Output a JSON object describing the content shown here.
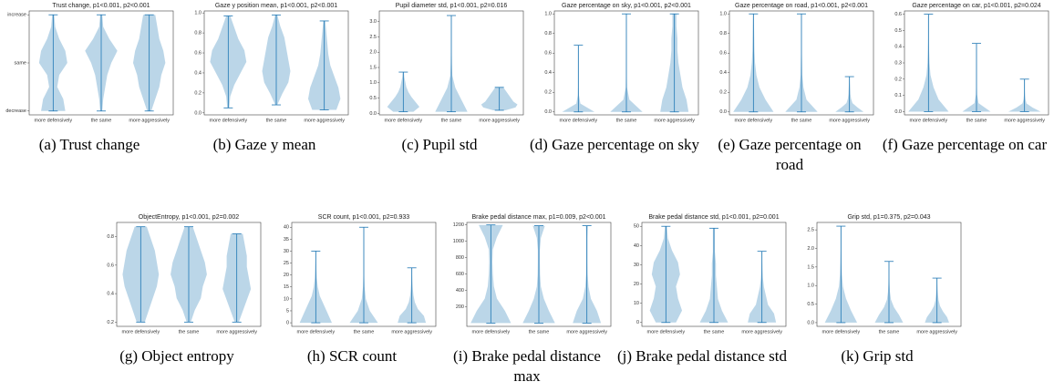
{
  "chart_data": [
    {
      "type": "violin",
      "title": "Trust change, p1<0.001, p2<0.001",
      "caption": "(a) Trust change",
      "color": "#1f77b4",
      "categories": [
        "more defensively",
        "the same",
        "more aggressively"
      ],
      "ylim": [
        -1.08,
        1.08
      ],
      "yticks": [
        {
          "value": -1,
          "label": "decrease"
        },
        {
          "value": 0,
          "label": "same"
        },
        {
          "value": 1,
          "label": "increase"
        }
      ],
      "violins": [
        {
          "min": -1,
          "max": 1,
          "density": [
            0.6,
            0.5,
            0.2,
            0.3,
            0.7,
            0.6,
            0.3,
            0.1,
            0.05
          ]
        },
        {
          "min": -1,
          "max": 1,
          "density": [
            0.05,
            0.1,
            0.2,
            0.3,
            0.5,
            0.8,
            0.4,
            0.1,
            0.05
          ]
        },
        {
          "min": -1,
          "max": 1,
          "density": [
            0.1,
            0.3,
            0.5,
            0.6,
            0.8,
            0.7,
            0.5,
            0.4,
            0.3
          ]
        }
      ]
    },
    {
      "type": "violin",
      "title": "Gaze y position mean, p1<0.001, p2<0.001",
      "caption": "(b) Gaze y mean",
      "color": "#1f77b4",
      "categories": [
        "more defensively",
        "the same",
        "more aggressively"
      ],
      "ylim": [
        -0.02,
        1.02
      ],
      "yticks": [
        {
          "value": 0,
          "label": "0.0"
        },
        0.2,
        0.4,
        0.6,
        0.8,
        {
          "value": 1,
          "label": "1.0"
        }
      ],
      "violins": [
        {
          "min": 0.05,
          "max": 0.97,
          "density": [
            0.05,
            0.1,
            0.3,
            0.6,
            0.9,
            0.8,
            0.5,
            0.3,
            0.1
          ]
        },
        {
          "min": 0.08,
          "max": 0.98,
          "density": [
            0.05,
            0.3,
            0.6,
            0.7,
            0.6,
            0.5,
            0.4,
            0.2,
            0.05
          ]
        },
        {
          "min": 0.03,
          "max": 0.92,
          "density": [
            0.6,
            0.8,
            0.7,
            0.5,
            0.3,
            0.2,
            0.15,
            0.1,
            0.05
          ]
        }
      ]
    },
    {
      "type": "violin",
      "title": "Pupil diameter std, p1<0.001, p2=0.016",
      "caption": "(c) Pupil std",
      "color": "#1f77b4",
      "categories": [
        "more defensively",
        "the same",
        "more aggressively"
      ],
      "ylim": [
        -0.05,
        3.35
      ],
      "yticks": [
        {
          "value": 0,
          "label": "0.0"
        },
        0.5,
        {
          "value": 1,
          "label": "1.0"
        },
        1.5,
        {
          "value": 2,
          "label": "2.0"
        },
        2.5,
        {
          "value": 3,
          "label": "3.0"
        }
      ],
      "violins": [
        {
          "min": 0.05,
          "max": 1.35,
          "density": [
            0.5,
            0.8,
            0.6,
            0.4,
            0.25,
            0.15,
            0.1,
            0.05,
            0.03
          ]
        },
        {
          "min": 0.05,
          "max": 3.2,
          "density": [
            0.8,
            0.5,
            0.2,
            0.05,
            0.03,
            0.02,
            0.02,
            0.02,
            0.02
          ]
        },
        {
          "min": 0.1,
          "max": 0.85,
          "density": [
            0.3,
            0.8,
            0.9,
            0.7,
            0.6,
            0.5,
            0.4,
            0.3,
            0.2
          ]
        }
      ]
    },
    {
      "type": "violin",
      "title": "Gaze percentage on sky, p1<0.001, p2<0.001",
      "caption": "(d) Gaze percentage on sky",
      "color": "#1f77b4",
      "categories": [
        "more defensively",
        "the same",
        "more aggressively"
      ],
      "ylim": [
        -0.03,
        1.03
      ],
      "yticks": [
        {
          "value": 0,
          "label": "0.0"
        },
        0.2,
        0.4,
        0.6,
        0.8,
        {
          "value": 1,
          "label": "1.0"
        }
      ],
      "violins": [
        {
          "min": 0,
          "max": 0.68,
          "density": [
            0.8,
            0.1,
            0.03,
            0.02,
            0.02,
            0.02,
            0.02,
            0.02,
            0.02
          ]
        },
        {
          "min": 0,
          "max": 1,
          "density": [
            0.8,
            0.15,
            0.03,
            0.02,
            0.02,
            0.02,
            0.02,
            0.02,
            0.02
          ]
        },
        {
          "min": 0,
          "max": 1,
          "density": [
            0.7,
            0.6,
            0.4,
            0.3,
            0.2,
            0.15,
            0.15,
            0.1,
            0.1
          ]
        }
      ]
    },
    {
      "type": "violin",
      "title": "Gaze percentage on road, p1<0.001, p2<0.001",
      "caption": "(e) Gaze percentage on road",
      "color": "#1f77b4",
      "categories": [
        "more defensively",
        "the same",
        "more aggressively"
      ],
      "ylim": [
        -0.03,
        1.03
      ],
      "yticks": [
        {
          "value": 0,
          "label": "0.0"
        },
        0.2,
        0.4,
        0.6,
        0.8,
        {
          "value": 1,
          "label": "1.0"
        }
      ],
      "violins": [
        {
          "min": 0,
          "max": 1,
          "density": [
            1,
            0.6,
            0.3,
            0.15,
            0.08,
            0.05,
            0.04,
            0.03,
            0.02
          ]
        },
        {
          "min": 0,
          "max": 1,
          "density": [
            0.8,
            0.25,
            0.1,
            0.04,
            0.03,
            0.02,
            0.02,
            0.02,
            0.02
          ]
        },
        {
          "min": 0,
          "max": 0.36,
          "density": [
            0.7,
            0.4,
            0.15,
            0.08,
            0.05,
            0.04,
            0.03,
            0.02,
            0.02
          ]
        }
      ]
    },
    {
      "type": "violin",
      "title": "Gaze percentage on car, p1<0.001, p2=0.024",
      "caption": "(f) Gaze percentage on car",
      "color": "#1f77b4",
      "categories": [
        "more defensively",
        "the same",
        "more aggressively"
      ],
      "ylim": [
        -0.02,
        0.62
      ],
      "yticks": [
        {
          "value": 0,
          "label": "0.0"
        },
        0.1,
        0.2,
        0.3,
        0.4,
        0.5,
        0.6
      ],
      "violins": [
        {
          "min": 0,
          "max": 0.6,
          "density": [
            1,
            0.5,
            0.25,
            0.1,
            0.05,
            0.03,
            0.02,
            0.02,
            0.02
          ]
        },
        {
          "min": 0,
          "max": 0.42,
          "density": [
            0.7,
            0.1,
            0.03,
            0.02,
            0.02,
            0.02,
            0.02,
            0.02,
            0.02
          ]
        },
        {
          "min": 0,
          "max": 0.2,
          "density": [
            0.8,
            0.4,
            0.1,
            0.05,
            0.03,
            0.02,
            0.02,
            0.02,
            0.02
          ]
        }
      ]
    },
    {
      "type": "violin",
      "title": "ObjectEntropy, p1<0.001, p2=0.002",
      "caption": "(g) Object entropy",
      "color": "#1f77b4",
      "categories": [
        "more defensively",
        "the same",
        "more aggressively"
      ],
      "ylim": [
        0.17,
        0.9
      ],
      "yticks": [
        0.2,
        0.4,
        0.6,
        0.8
      ],
      "violins": [
        {
          "min": 0.2,
          "max": 0.87,
          "density": [
            0.2,
            0.4,
            0.6,
            0.8,
            0.9,
            0.8,
            0.7,
            0.5,
            0.3
          ]
        },
        {
          "min": 0.2,
          "max": 0.87,
          "density": [
            0.1,
            0.3,
            0.6,
            0.7,
            0.9,
            0.8,
            0.6,
            0.4,
            0.2
          ]
        },
        {
          "min": 0.2,
          "max": 0.82,
          "density": [
            0.1,
            0.3,
            0.5,
            0.7,
            0.6,
            0.5,
            0.5,
            0.4,
            0.3
          ]
        }
      ]
    },
    {
      "type": "violin",
      "title": "SCR count, p1<0.001, p2=0.933",
      "caption": "(h) SCR count",
      "color": "#1f77b4",
      "categories": [
        "more defensively",
        "the same",
        "more aggressively"
      ],
      "ylim": [
        -1.5,
        42
      ],
      "yticks": [
        0,
        5,
        10,
        15,
        20,
        25,
        30,
        35,
        40
      ],
      "violins": [
        {
          "min": 0,
          "max": 30,
          "density": [
            0.8,
            0.6,
            0.4,
            0.2,
            0.1,
            0.05,
            0.03,
            0.02,
            0.02
          ]
        },
        {
          "min": 0,
          "max": 40,
          "density": [
            0.7,
            0.3,
            0.1,
            0.04,
            0.02,
            0.02,
            0.02,
            0.02,
            0.02
          ]
        },
        {
          "min": 0,
          "max": 23,
          "density": [
            0.7,
            0.6,
            0.3,
            0.15,
            0.08,
            0.05,
            0.03,
            0.02,
            0.02
          ]
        }
      ]
    },
    {
      "type": "violin",
      "title": "Brake pedal distance max, p1=0.009, p2<0.001",
      "caption": "(i) Brake pedal distance max",
      "color": "#1f77b4",
      "categories": [
        "more defensively",
        "the same",
        "more aggressively"
      ],
      "ylim": [
        -40,
        1230
      ],
      "yticks": [
        200,
        400,
        600,
        800,
        1000,
        1200
      ],
      "violins": [
        {
          "min": 0,
          "max": 1200,
          "density": [
            1,
            0.7,
            0.3,
            0.15,
            0.1,
            0.08,
            0.1,
            0.3,
            0.6
          ]
        },
        {
          "min": 0,
          "max": 1190,
          "density": [
            0.8,
            0.5,
            0.25,
            0.1,
            0.06,
            0.05,
            0.05,
            0.1,
            0.3
          ]
        },
        {
          "min": 0,
          "max": 1190,
          "density": [
            0.7,
            0.5,
            0.2,
            0.08,
            0.04,
            0.03,
            0.03,
            0.03,
            0.05
          ]
        }
      ]
    },
    {
      "type": "violin",
      "title": "Brake pedal distance std, p1<0.001, p2=0.001",
      "caption": "(j) Brake pedal distance std",
      "color": "#1f77b4",
      "categories": [
        "more defensively",
        "the same",
        "more aggressively"
      ],
      "ylim": [
        -2,
        52
      ],
      "yticks": [
        0,
        10,
        20,
        30,
        40,
        50
      ],
      "violins": [
        {
          "min": 0,
          "max": 50,
          "density": [
            0.5,
            0.8,
            0.6,
            0.5,
            0.7,
            0.6,
            0.3,
            0.1,
            0.05
          ]
        },
        {
          "min": 0,
          "max": 49,
          "density": [
            0.7,
            0.4,
            0.2,
            0.15,
            0.1,
            0.1,
            0.05,
            0.05,
            0.05
          ]
        },
        {
          "min": 0,
          "max": 37,
          "density": [
            0.7,
            0.6,
            0.3,
            0.2,
            0.1,
            0.05,
            0.03,
            0.02,
            0.02
          ]
        }
      ]
    },
    {
      "type": "violin",
      "title": "Grip std, p1=0.375, p2=0.043",
      "caption": "(k) Grip std",
      "color": "#1f77b4",
      "categories": [
        "more defensively",
        "the same",
        "more aggressively"
      ],
      "ylim": [
        -0.1,
        2.7
      ],
      "yticks": [
        {
          "value": 0,
          "label": "0.0"
        },
        0.5,
        {
          "value": 1,
          "label": "1.0"
        },
        1.5,
        {
          "value": 2,
          "label": "2.0"
        },
        2.5
      ],
      "violins": [
        {
          "min": 0,
          "max": 2.6,
          "density": [
            0.8,
            0.5,
            0.25,
            0.1,
            0.05,
            0.03,
            0.02,
            0.02,
            0.02
          ]
        },
        {
          "min": 0,
          "max": 1.65,
          "density": [
            0.7,
            0.5,
            0.25,
            0.1,
            0.05,
            0.03,
            0.02,
            0.02,
            0.02
          ]
        },
        {
          "min": 0,
          "max": 1.2,
          "density": [
            0.6,
            0.5,
            0.3,
            0.15,
            0.08,
            0.05,
            0.03,
            0.02,
            0.02
          ]
        }
      ]
    }
  ]
}
